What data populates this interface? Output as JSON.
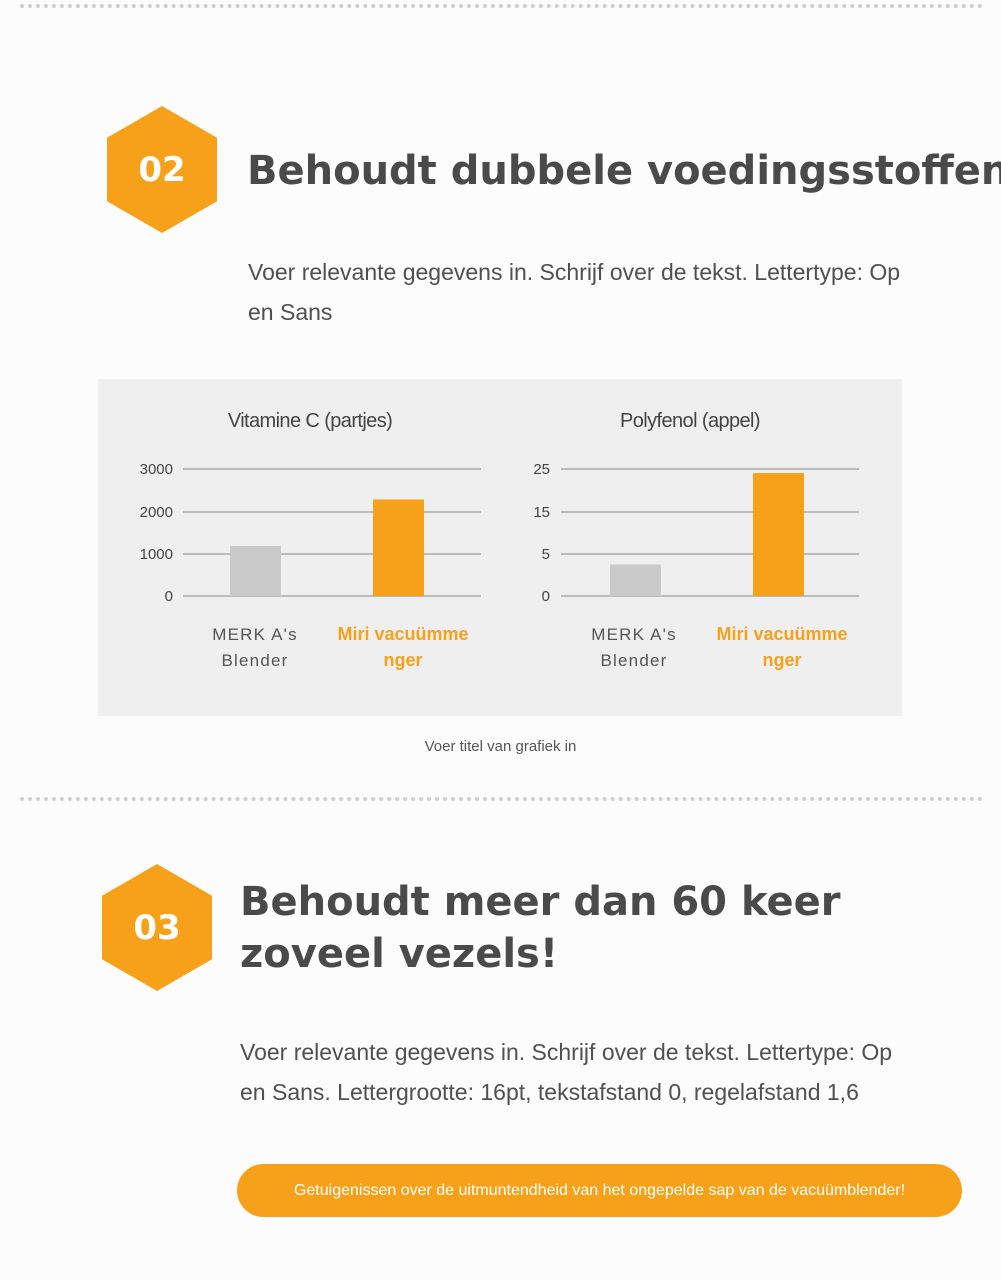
{
  "section2": {
    "number": "02",
    "heading": "Behoudt dubbele voedingsstoffen",
    "body_line1": "Voer relevante gegevens in. Schrijf over de tekst. Lettertype: Op",
    "body_line2": "en Sans"
  },
  "caption": "Voer titel van grafiek in",
  "section3": {
    "number": "03",
    "heading_line1": "Behoudt meer dan 60 keer",
    "heading_line2": "zoveel vezels!",
    "body_line1": "Voer relevante gegevens in. Schrijf over de tekst. Lettertype: Op",
    "body_line2": "en Sans. Lettergrootte: 16pt, tekstafstand 0, regelafstand 1,6"
  },
  "testimonial_button": "Getuigenissen over de uitmuntendheid van het ongepelde sap van de vacuümblender!",
  "colors": {
    "accent": "#f7a11a",
    "gray_bar": "#cacaca",
    "heading": "#4a4a4a"
  },
  "chart_data": [
    {
      "type": "bar",
      "title": "Vitamine C (partjes)",
      "categories": [
        [
          "MERK A's",
          "Blender"
        ],
        [
          "Miri vacuümme",
          "nger"
        ]
      ],
      "values": [
        1180,
        2280
      ],
      "yticks": [
        "3000",
        "2000",
        "1000",
        "0"
      ],
      "tick_values": [
        3000,
        2000,
        1000,
        0
      ],
      "ylim": [
        0,
        3000
      ],
      "xlabel": "",
      "ylabel": ""
    },
    {
      "type": "bar",
      "title": "Polyfenol (appel)",
      "categories": [
        [
          "MERK A's",
          "Blender"
        ],
        [
          "Miri vacuümme",
          "nger"
        ]
      ],
      "values": [
        6.2,
        24.2
      ],
      "yticks": [
        "25",
        "15",
        "5",
        "0"
      ],
      "tick_values": [
        25,
        15,
        5,
        0
      ],
      "ylim": [
        0,
        25
      ],
      "xlabel": "",
      "ylabel": ""
    }
  ]
}
